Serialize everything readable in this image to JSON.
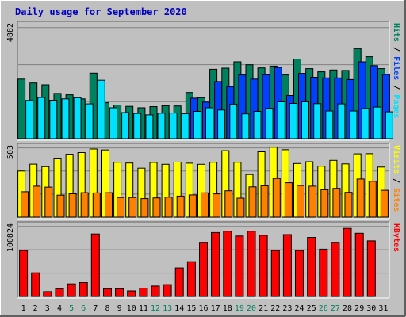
{
  "chart_data": [
    {
      "type": "bar",
      "title": "Daily usage for September 2020",
      "categories": [
        "1",
        "2",
        "3",
        "4",
        "5",
        "6",
        "7",
        "8",
        "9",
        "10",
        "11",
        "12",
        "13",
        "14",
        "15",
        "16",
        "17",
        "18",
        "19",
        "20",
        "21",
        "22",
        "23",
        "24",
        "25",
        "26",
        "27",
        "28",
        "29",
        "30",
        "31"
      ],
      "weekend_days": [
        "5",
        "6",
        "12",
        "13",
        "19",
        "20",
        "26",
        "27"
      ],
      "ylim": [
        0,
        4882
      ],
      "ytick_label": "4882",
      "ylabel_parts": [
        "Pages",
        " / ",
        "Files",
        " / ",
        "Hits"
      ],
      "series": [
        {
          "name": "Hits",
          "color": "#00805c",
          "values": [
            2620,
            2450,
            2370,
            1990,
            1930,
            1750,
            2880,
            1580,
            1480,
            1420,
            1360,
            1410,
            1450,
            1440,
            2030,
            1800,
            3050,
            3100,
            3380,
            3250,
            3110,
            3190,
            2800,
            3500,
            3080,
            2940,
            3020,
            3000,
            3960,
            3600,
            3080
          ]
        },
        {
          "name": "Files",
          "color": "#0040ff",
          "values": [
            0,
            0,
            0,
            0,
            0,
            0,
            0,
            0,
            0,
            0,
            0,
            0,
            0,
            0,
            1780,
            1610,
            2510,
            2290,
            2800,
            2620,
            2810,
            3130,
            1900,
            2870,
            2700,
            2670,
            2670,
            2600,
            3380,
            3210,
            2820
          ]
        },
        {
          "name": "Pages",
          "color": "#00e0ff",
          "values": [
            1680,
            1810,
            1690,
            1750,
            1800,
            1530,
            2570,
            1360,
            1150,
            1110,
            1050,
            1120,
            1130,
            1100,
            1200,
            1360,
            1260,
            1520,
            1090,
            1200,
            1340,
            1620,
            1550,
            1620,
            1540,
            1220,
            1530,
            1220,
            1330,
            1390,
            1180
          ]
        }
      ]
    },
    {
      "type": "bar",
      "categories": [
        "1",
        "2",
        "3",
        "4",
        "5",
        "6",
        "7",
        "8",
        "9",
        "10",
        "11",
        "12",
        "13",
        "14",
        "15",
        "16",
        "17",
        "18",
        "19",
        "20",
        "21",
        "22",
        "23",
        "24",
        "25",
        "26",
        "27",
        "28",
        "29",
        "30",
        "31"
      ],
      "ylim": [
        0,
        503
      ],
      "ytick_label": "503",
      "ylabel_parts": [
        "Sites",
        " / ",
        "Visits"
      ],
      "series": [
        {
          "name": "Visits",
          "color": "#ffff00",
          "values": [
            335,
            385,
            367,
            423,
            457,
            469,
            495,
            488,
            399,
            393,
            356,
            398,
            384,
            400,
            392,
            384,
            399,
            483,
            399,
            310,
            475,
            508,
            490,
            390,
            403,
            370,
            413,
            387,
            460,
            461,
            364
          ]
        },
        {
          "name": "Sites",
          "color": "#ff8000",
          "values": [
            185,
            225,
            218,
            160,
            170,
            178,
            176,
            178,
            143,
            143,
            135,
            140,
            145,
            153,
            162,
            177,
            169,
            192,
            138,
            220,
            228,
            281,
            250,
            230,
            225,
            199,
            209,
            180,
            277,
            260,
            195
          ]
        }
      ]
    },
    {
      "type": "bar",
      "categories": [
        "1",
        "2",
        "3",
        "4",
        "5",
        "6",
        "7",
        "8",
        "9",
        "10",
        "11",
        "12",
        "13",
        "14",
        "15",
        "16",
        "17",
        "18",
        "19",
        "20",
        "21",
        "22",
        "23",
        "24",
        "25",
        "26",
        "27",
        "28",
        "29",
        "30",
        "31"
      ],
      "ylim": [
        0,
        100824
      ],
      "ytick_label": "100824",
      "ylabel_parts": [
        "KBytes"
      ],
      "series": [
        {
          "name": "KBytes",
          "color": "#ff0000",
          "values": [
            66000,
            34000,
            7000,
            11000,
            18000,
            20000,
            90000,
            11000,
            11000,
            8000,
            12000,
            15000,
            17000,
            41000,
            50000,
            78000,
            92000,
            94000,
            87000,
            94000,
            88000,
            66000,
            89000,
            66000,
            85000,
            68000,
            78000,
            98000,
            91000,
            80000,
            0
          ]
        }
      ]
    }
  ]
}
